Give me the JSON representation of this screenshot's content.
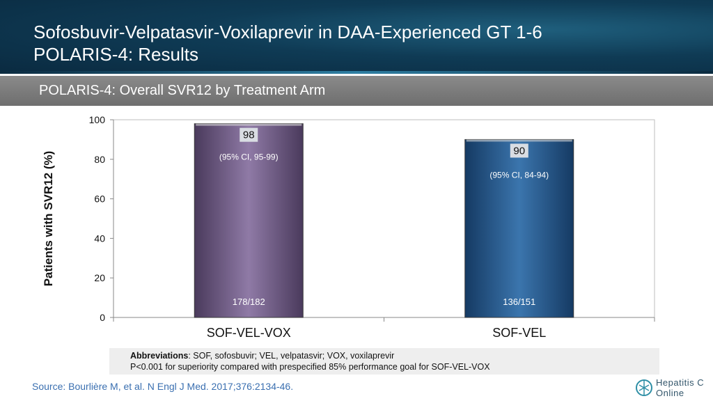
{
  "header": {
    "title_line1": "Sofosbuvir-Velpatasvir-Voxilaprevir in DAA-Experienced GT 1-6",
    "title_line2": "POLARIS-4: Results"
  },
  "subheader": {
    "title": "POLARIS-4: Overall SVR12 by Treatment Arm"
  },
  "chart_data": {
    "type": "bar",
    "categories": [
      "SOF-VEL-VOX",
      "SOF-VEL"
    ],
    "values": [
      98,
      90
    ],
    "value_labels": [
      "98",
      "90"
    ],
    "ci_labels": [
      "(95% CI, 95-99)",
      "(95% CI, 84-94)"
    ],
    "counts": [
      "178/182",
      "136/151"
    ],
    "bar_colors": [
      "#6f5a86",
      "#2a5d92"
    ],
    "ylabel": "Patients with SVR12 (%)",
    "xlabel": "",
    "ylim": [
      0,
      100
    ],
    "yticks": [
      0,
      20,
      40,
      60,
      80,
      100
    ],
    "grid": false
  },
  "footnote": {
    "abbrev_label": "Abbreviations",
    "abbrev_text": ": SOF, sofosbuvir; VEL, velpatasvir; VOX, voxilaprevir",
    "pvalue_text": "P<0.001 for superiority compared with prespecified 85% performance goal for SOF-VEL-VOX"
  },
  "source": "Source: Bourlière M, et al. N Engl J Med. 2017;376:2134-46.",
  "logo": {
    "line1": "Hepatitis C",
    "line2": "Online",
    "icon": "hepatitis-c-online-logo-icon"
  }
}
